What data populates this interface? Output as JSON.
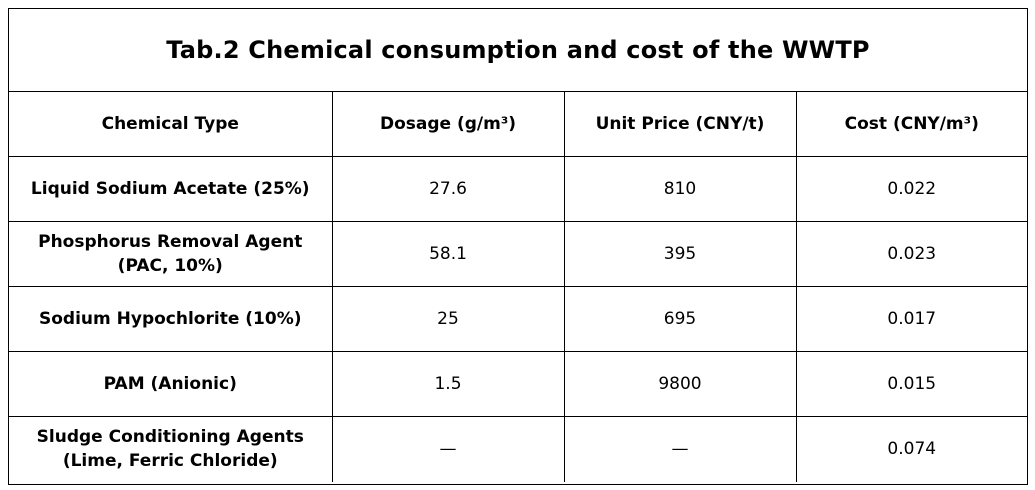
{
  "table": {
    "title": "Tab.2 Chemical consumption and cost of the WWTP",
    "headers": [
      "Chemical Type",
      "Dosage (g/m³)",
      "Unit Price (CNY/t)",
      "Cost (CNY/m³)"
    ],
    "rows": [
      {
        "name_lines": [
          "Liquid Sodium Acetate (25%)"
        ],
        "dosage": "27.6",
        "unit_price": "810",
        "cost": "0.022"
      },
      {
        "name_lines": [
          "Phosphorus Removal Agent",
          "(PAC, 10%)"
        ],
        "dosage": "58.1",
        "unit_price": "395",
        "cost": "0.023"
      },
      {
        "name_lines": [
          "Sodium Hypochlorite (10%)"
        ],
        "dosage": "25",
        "unit_price": "695",
        "cost": "0.017"
      },
      {
        "name_lines": [
          "PAM (Anionic)"
        ],
        "dosage": "1.5",
        "unit_price": "9800",
        "cost": "0.015"
      },
      {
        "name_lines": [
          "Sludge Conditioning Agents",
          "(Lime, Ferric Chloride)"
        ],
        "dosage": "—",
        "unit_price": "—",
        "cost": "0.074"
      }
    ]
  }
}
